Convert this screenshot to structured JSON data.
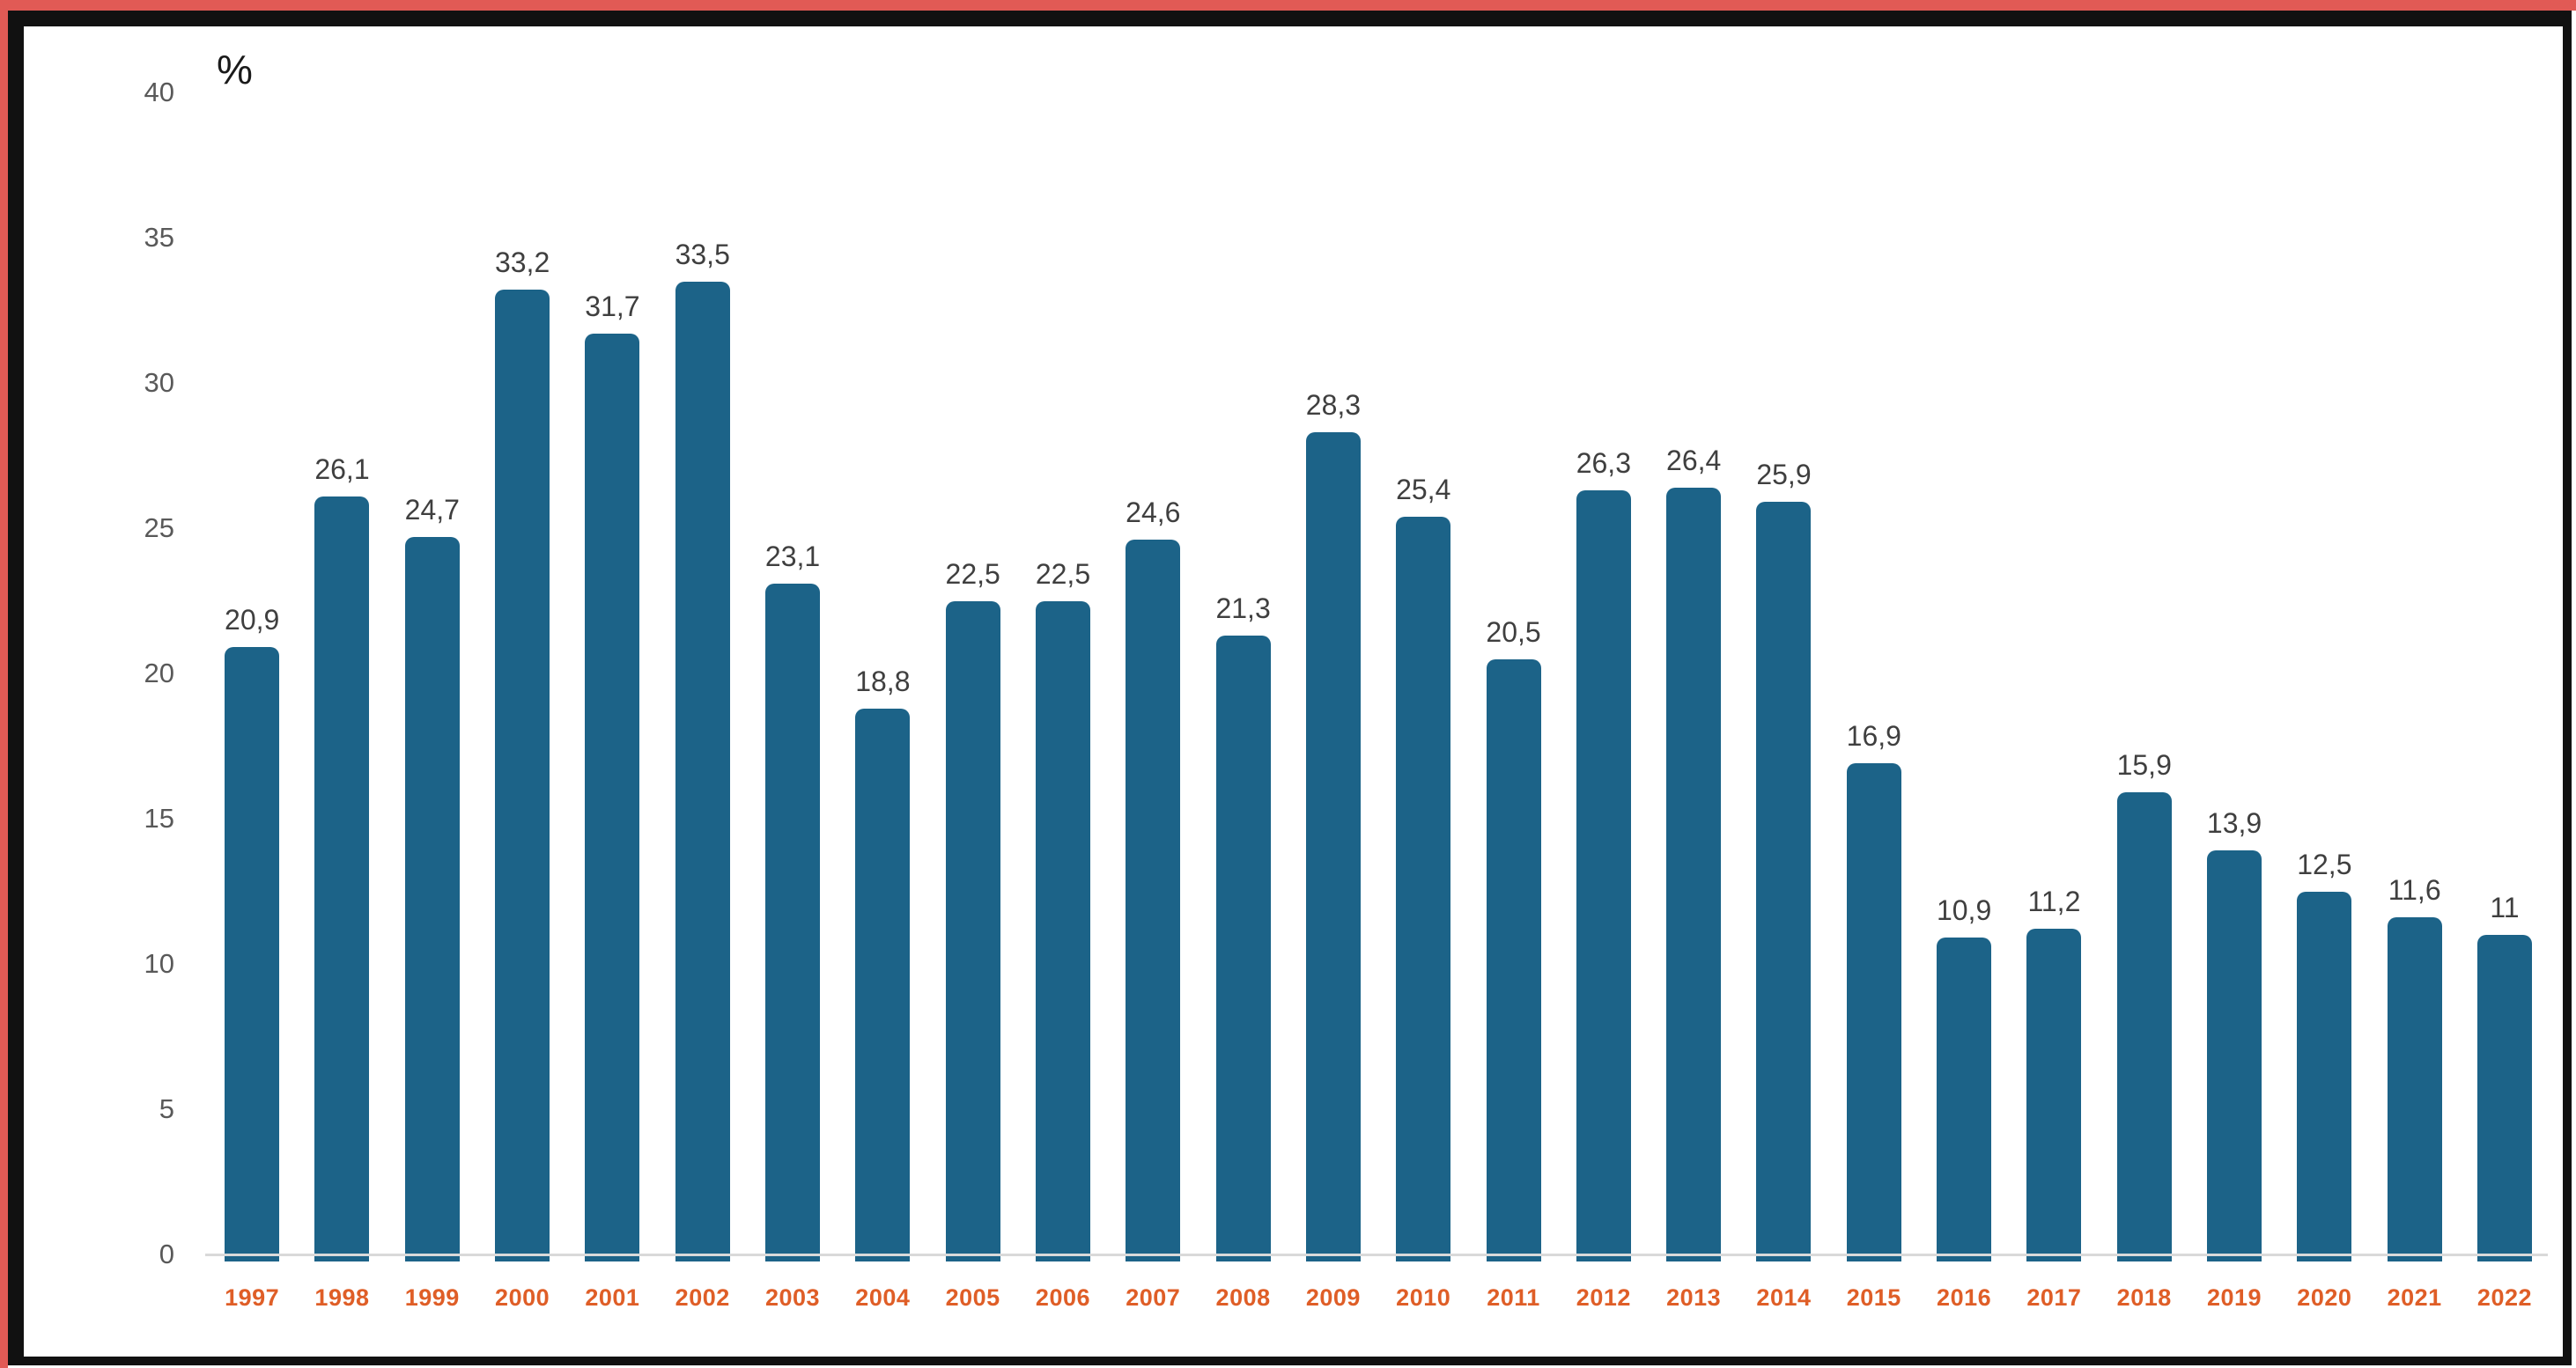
{
  "frame": {
    "outer_line_color": "#e15a55",
    "border_color": "#111111"
  },
  "chart_data": {
    "type": "bar",
    "title": "",
    "unit_label": "%",
    "categories": [
      "1997",
      "1998",
      "1999",
      "2000",
      "2001",
      "2002",
      "2003",
      "2004",
      "2005",
      "2006",
      "2007",
      "2008",
      "2009",
      "2010",
      "2011",
      "2012",
      "2013",
      "2014",
      "2015",
      "2016",
      "2017",
      "2018",
      "2019",
      "2020",
      "2021",
      "2022"
    ],
    "values": [
      20.9,
      26.1,
      24.7,
      33.2,
      31.7,
      33.5,
      23.1,
      18.8,
      22.5,
      22.5,
      24.6,
      21.3,
      28.3,
      25.4,
      20.5,
      26.3,
      26.4,
      25.9,
      16.9,
      10.9,
      11.2,
      15.9,
      13.9,
      12.5,
      11.6,
      11
    ],
    "value_labels": [
      "20,9",
      "26,1",
      "24,7",
      "33,2",
      "31,7",
      "33,5",
      "23,1",
      "18,8",
      "22,5",
      "22,5",
      "24,6",
      "21,3",
      "28,3",
      "25,4",
      "20,5",
      "26,3",
      "26,4",
      "25,9",
      "16,9",
      "10,9",
      "11,2",
      "15,9",
      "13,9",
      "12,5",
      "11,6",
      "11"
    ],
    "y_ticks": [
      40,
      35,
      30,
      25,
      20,
      15,
      10,
      5,
      0
    ],
    "ylim": [
      0,
      40
    ],
    "xlabel": "",
    "ylabel": "%",
    "grid": false,
    "legend": null,
    "colors": {
      "bar": "#1c6388",
      "value_label": "#3f3f3f",
      "category_label": "#df5e27",
      "axis_tick": "#595959",
      "axis_line": "#d9d9d9"
    }
  }
}
